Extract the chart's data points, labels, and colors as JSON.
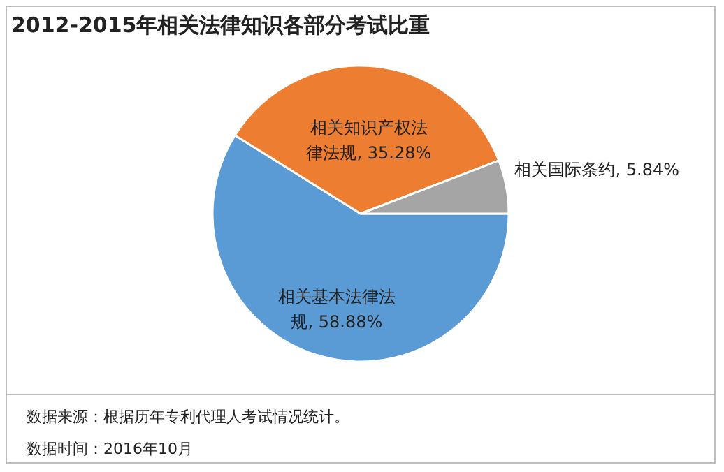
{
  "chart_data": {
    "type": "pie",
    "title": "2012-2015年相关法律知识各部分考试比重",
    "categories": [
      "相关基本法律法规",
      "相关知识产权法律法规",
      "相关国际条约"
    ],
    "values": [
      58.88,
      35.28,
      5.84
    ],
    "value_labels": [
      "58.88%",
      "35.28%",
      "5.84%"
    ],
    "colors": [
      "#5b9bd5",
      "#ed7d31",
      "#a5a5a5"
    ],
    "legend": false,
    "annotations": [
      "数据来源：根据历年专利代理人考试情况统计。",
      "数据时间：2016年10月"
    ]
  }
}
